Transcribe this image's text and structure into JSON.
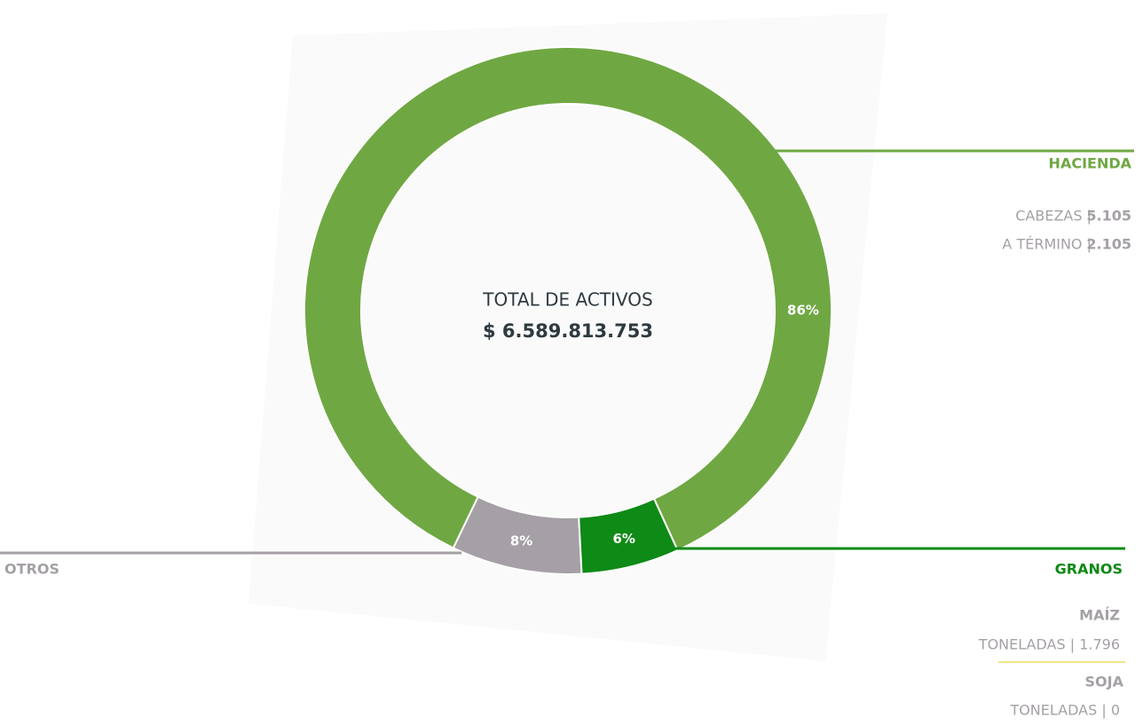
{
  "chart_data": {
    "type": "pie",
    "categories": [
      "OTROS",
      "HACIENDA",
      "GRANOS"
    ],
    "values": [
      8,
      86,
      6
    ],
    "value_labels": [
      "8%",
      "86%",
      "6%"
    ],
    "colors": [
      "#a5a0a6",
      "#6fa843",
      "#0e8a16"
    ],
    "center_label": "TOTAL DE ACTIVOS",
    "center_value": "$ 6.589.813.753",
    "details": {
      "hacienda": [
        {
          "label": "CABEZAS |",
          "value": "5.105"
        },
        {
          "label": "A TÉRMINO |",
          "value": "2.105"
        }
      ],
      "granos": [
        {
          "name": "MAÍZ",
          "text": "TONELADAS | 1.796"
        },
        {
          "name": "SOJA",
          "text": "TONELADAS | 0"
        }
      ]
    }
  }
}
